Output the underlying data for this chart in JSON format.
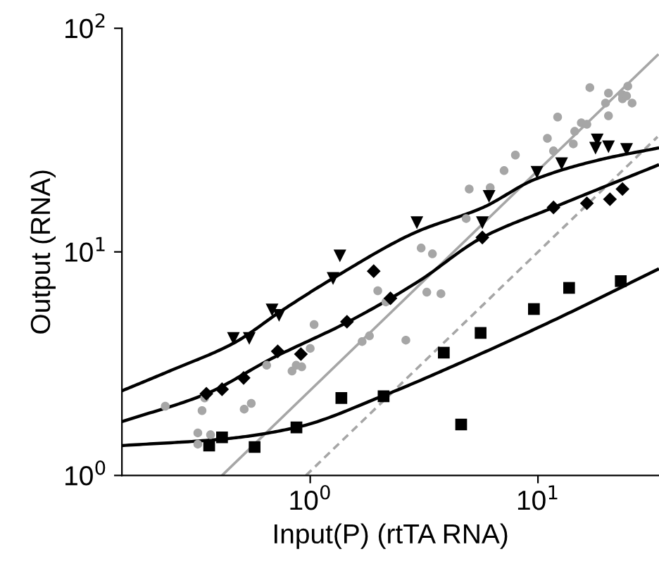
{
  "chart_data": {
    "type": "scatter",
    "xlabel": "Input(P) (rtTA RNA)",
    "ylabel": "Output (RNA)",
    "log": "xy",
    "grid": false,
    "xlim": [
      0.149,
      34
    ],
    "ylim": [
      1,
      100
    ],
    "xticks": [
      {
        "value": 1,
        "label": "10$^{0}$"
      },
      {
        "value": 10,
        "label": "10$^{1}$"
      }
    ],
    "yticks": [
      {
        "value": 1,
        "label": "10$^{0}$"
      },
      {
        "value": 10,
        "label": "10$^{1}$"
      },
      {
        "value": 100,
        "label": "10$^{2}$"
      }
    ],
    "series": [
      {
        "marker": "circle",
        "color": "#a6a6a6",
        "x": [
          0.231,
          0.321,
          0.365,
          0.321,
          0.335,
          0.344,
          0.513,
          0.551,
          0.644,
          0.832,
          0.868,
          0.918,
          1.0,
          1.04,
          1.69,
          1.82,
          1.98,
          2.15,
          2.63,
          3.25,
          3.75,
          3.07,
          3.44,
          4.84,
          4.99,
          6.17,
          7.1,
          7.96,
          11.0,
          11.7,
          12.2,
          14.3,
          14.5,
          15.5,
          16.4,
          16.9,
          19.8,
          20.4,
          20.4,
          23.5,
          23.5,
          24.8,
          25.9,
          24.5
        ],
        "values": [
          2.04,
          1.55,
          1.52,
          1.38,
          1.95,
          2.22,
          1.98,
          2.1,
          3.11,
          2.93,
          3.11,
          3.06,
          3.7,
          4.73,
          3.97,
          4.21,
          6.7,
          5.97,
          4.03,
          6.6,
          6.5,
          10.4,
          9.8,
          14.1,
          19.1,
          19.4,
          23.1,
          27.1,
          32.2,
          28.3,
          40.1,
          30.4,
          34.6,
          37.8,
          37.2,
          54.3,
          46.3,
          40.6,
          51.3,
          48.4,
          50.5,
          55.1,
          46.3,
          49.8
        ]
      },
      {
        "type": "line",
        "line_style": "solid",
        "color": "#a6a6a6",
        "x": [
          0.41,
          33.5
        ],
        "values": [
          1,
          75.9
        ]
      },
      {
        "type": "line",
        "line_style": "dashed",
        "color": "#a6a6a6",
        "x": [
          0.958,
          33.5
        ],
        "values": [
          1,
          32.7
        ]
      },
      {
        "marker": "triangle",
        "color": "#000000",
        "x": [
          0.46,
          0.54,
          0.68,
          0.73,
          1.26,
          1.35,
          2.94,
          5.7,
          6.1,
          9.9,
          12.7,
          17.9,
          18.2,
          20.4,
          24.5
        ],
        "values": [
          4.1,
          4.1,
          5.5,
          5.2,
          7.6,
          9.6,
          13.5,
          13.5,
          17.7,
          22.7,
          24.8,
          29.1,
          31.7,
          29.5,
          28.7
        ]
      },
      {
        "marker": "diamond",
        "color": "#000000",
        "x": [
          0.35,
          0.41,
          0.51,
          0.72,
          0.91,
          1.45,
          1.9,
          2.25,
          5.7,
          11.7,
          16.4,
          20.7,
          23.5
        ],
        "values": [
          2.32,
          2.43,
          2.73,
          3.59,
          3.49,
          4.87,
          8.2,
          6.2,
          11.6,
          15.8,
          16.5,
          17.2,
          19.1
        ]
      },
      {
        "marker": "square",
        "color": "#000000",
        "x": [
          0.36,
          0.41,
          0.57,
          0.87,
          1.37,
          2.1,
          3.86,
          4.6,
          5.6,
          9.6,
          13.7,
          23.1
        ],
        "values": [
          1.36,
          1.48,
          1.34,
          1.64,
          2.22,
          2.26,
          3.54,
          1.69,
          4.34,
          5.55,
          6.9,
          7.4
        ]
      },
      {
        "type": "line",
        "line_style": "solid",
        "color": "#000000",
        "x": [
          0.149,
          0.241,
          0.464,
          0.752,
          1.255,
          2.94,
          5.74,
          9.7,
          18.9,
          33.5
        ],
        "values": [
          2.39,
          2.93,
          3.92,
          5.47,
          7.6,
          12.3,
          15.8,
          21.1,
          25.9,
          29.1
        ]
      },
      {
        "type": "line",
        "line_style": "solid",
        "color": "#000000",
        "x": [
          0.149,
          0.35,
          0.68,
          1.47,
          2.94,
          5.7,
          11.7,
          33.5
        ],
        "values": [
          1.74,
          2.32,
          3.34,
          4.87,
          7.3,
          11.6,
          15.8,
          24.4
        ]
      },
      {
        "type": "line",
        "line_style": "solid",
        "color": "#000000",
        "x": [
          0.149,
          0.43,
          0.87,
          2.13,
          4.6,
          11.7,
          33.5
        ],
        "values": [
          1.36,
          1.46,
          1.64,
          2.29,
          3.2,
          4.94,
          8.34
        ]
      }
    ]
  }
}
